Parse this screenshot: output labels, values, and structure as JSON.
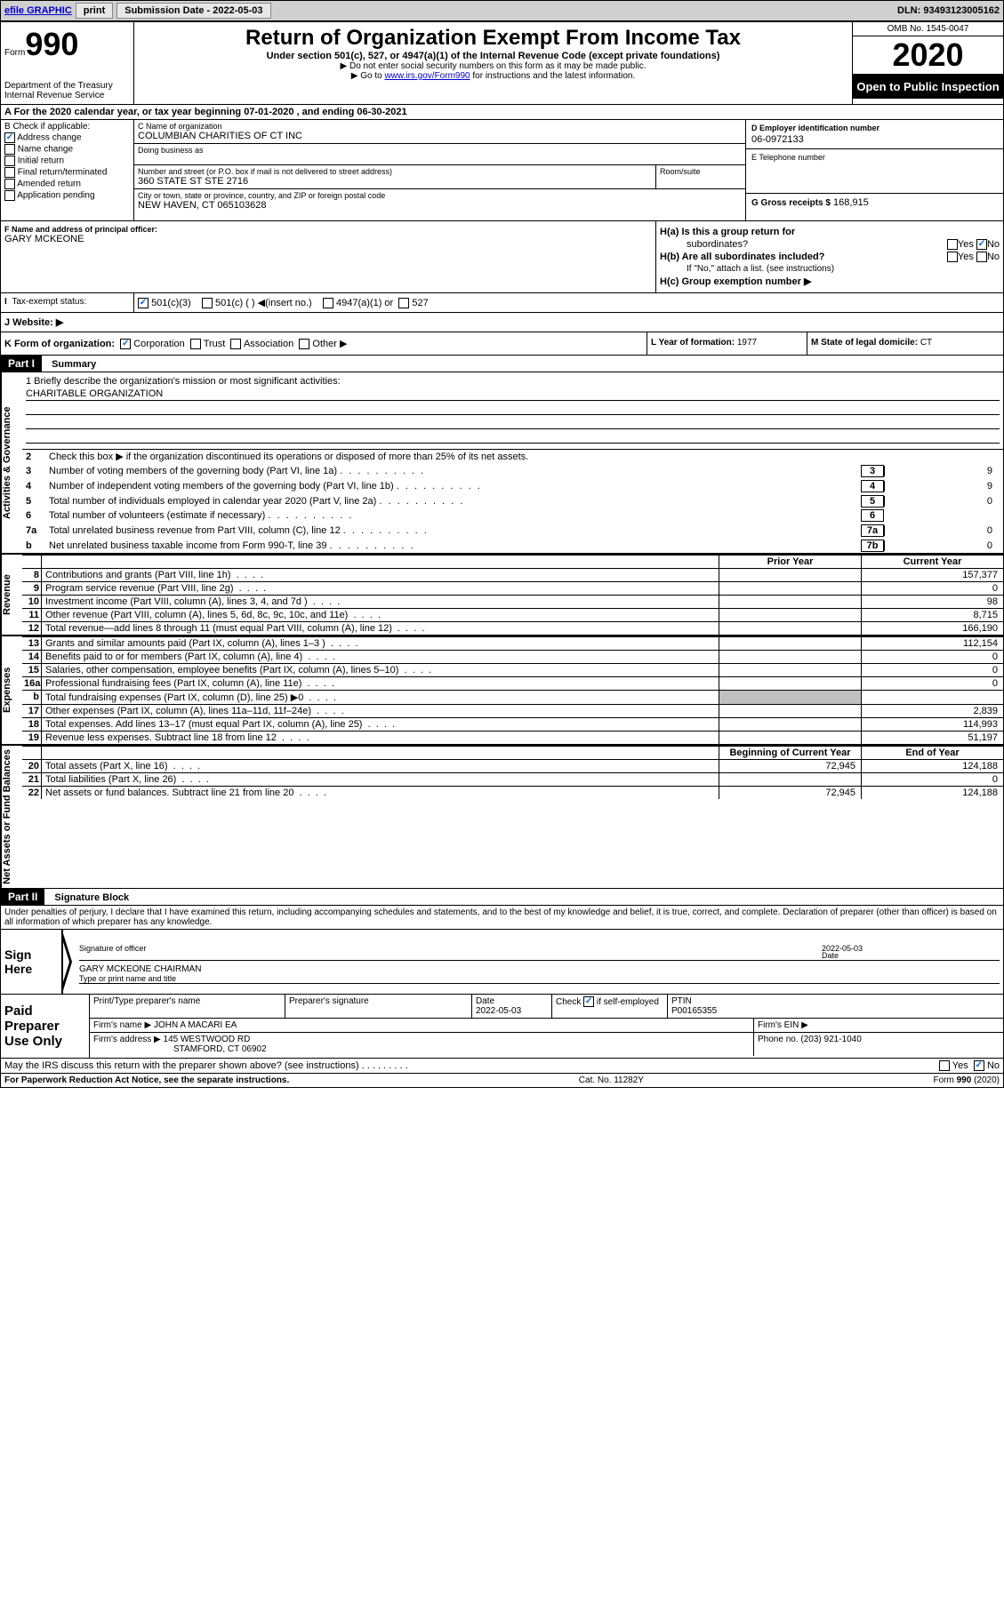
{
  "topbar": {
    "efile_label": "efile GRAPHIC",
    "print_label": "print",
    "submission_label": "Submission Date - 2022-05-03",
    "dln_label": "DLN: 93493123005162"
  },
  "header": {
    "form_label": "Form",
    "form_number": "990",
    "dept": "Department of the Treasury\nInternal Revenue Service",
    "title": "Return of Organization Exempt From Income Tax",
    "subtitle": "Under section 501(c), 527, or 4947(a)(1) of the Internal Revenue Code (except private foundations)",
    "note1": "▶ Do not enter social security numbers on this form as it may be made public.",
    "note2_pre": "▶ Go to ",
    "note2_link": "www.irs.gov/Form990",
    "note2_post": " for instructions and the latest information.",
    "omb": "OMB No. 1545-0047",
    "year": "2020",
    "open": "Open to Public Inspection"
  },
  "period": {
    "text": "A For the 2020 calendar year, or tax year beginning 07-01-2020     , and ending 06-30-2021"
  },
  "section_b": {
    "label": "B Check if applicable:",
    "address_change": "Address change",
    "name_change": "Name change",
    "initial_return": "Initial return",
    "final_return": "Final return/terminated",
    "amended": "Amended return",
    "app_pending": "Application pending"
  },
  "section_c": {
    "name_label": "C Name of organization",
    "name": "COLUMBIAN CHARITIES OF CT INC",
    "dba_label": "Doing business as",
    "dba": "",
    "street_label": "Number and street (or P.O. box if mail is not delivered to street address)",
    "street": "360 STATE ST STE 2716",
    "room_label": "Room/suite",
    "room": "",
    "city_label": "City or town, state or province, country, and ZIP or foreign postal code",
    "city": "NEW HAVEN, CT  065103628"
  },
  "section_d": {
    "ein_label": "D Employer identification number",
    "ein": "06-0972133",
    "phone_label": "E Telephone number",
    "phone": "",
    "gross_label": "G Gross receipts $",
    "gross": "168,915"
  },
  "section_f": {
    "label": "F  Name and address of principal officer:",
    "name": "GARY MCKEONE"
  },
  "section_h": {
    "ha_label": "H(a)  Is this a group return for",
    "ha_label2": "subordinates?",
    "hb_label": "H(b)  Are all subordinates included?",
    "hb_note": "If \"No,\" attach a list. (see instructions)",
    "hc_label": "H(c)  Group exemption number ▶",
    "yes": "Yes",
    "no": "No"
  },
  "section_i": {
    "label": "Tax-exempt status:",
    "opt1": "501(c)(3)",
    "opt2": "501(c) (  ) ◀(insert no.)",
    "opt3": "4947(a)(1) or",
    "opt4": "527"
  },
  "section_j": {
    "label": "J   Website: ▶"
  },
  "section_k": {
    "label": "K Form of organization:",
    "corp": "Corporation",
    "trust": "Trust",
    "assoc": "Association",
    "other": "Other ▶"
  },
  "section_l": {
    "label": "L Year of formation:",
    "value": "1977"
  },
  "section_m": {
    "label": "M State of legal domicile:",
    "value": "CT"
  },
  "part1": {
    "header": "Part I",
    "title": "Summary",
    "line1": "1  Briefly describe the organization's mission or most significant activities:",
    "mission": "CHARITABLE ORGANIZATION",
    "line2": "Check this box ▶         if the organization discontinued its operations or disposed of more than 25% of its net assets.",
    "tabs": {
      "gov": "Activities & Governance",
      "rev": "Revenue",
      "exp": "Expenses",
      "net": "Net Assets or Fund Balances"
    },
    "rows_gov": [
      {
        "n": "2",
        "txt": "",
        "box": "",
        "v": ""
      },
      {
        "n": "3",
        "txt": "Number of voting members of the governing body (Part VI, line 1a)",
        "box": "3",
        "v": "9"
      },
      {
        "n": "4",
        "txt": "Number of independent voting members of the governing body (Part VI, line 1b)",
        "box": "4",
        "v": "9"
      },
      {
        "n": "5",
        "txt": "Total number of individuals employed in calendar year 2020 (Part V, line 2a)",
        "box": "5",
        "v": "0"
      },
      {
        "n": "6",
        "txt": "Total number of volunteers (estimate if necessary)",
        "box": "6",
        "v": ""
      },
      {
        "n": "7a",
        "txt": "Total unrelated business revenue from Part VIII, column (C), line 12",
        "box": "7a",
        "v": "0"
      },
      {
        "n": "b",
        "txt": "Net unrelated business taxable income from Form 990-T, line 39",
        "box": "7b",
        "v": "0"
      }
    ],
    "col_hdr": {
      "prior": "Prior Year",
      "current": "Current Year"
    },
    "rows_rev": [
      {
        "n": "8",
        "txt": "Contributions and grants (Part VIII, line 1h)",
        "p": "",
        "c": "157,377"
      },
      {
        "n": "9",
        "txt": "Program service revenue (Part VIII, line 2g)",
        "p": "",
        "c": "0"
      },
      {
        "n": "10",
        "txt": "Investment income (Part VIII, column (A), lines 3, 4, and 7d )",
        "p": "",
        "c": "98"
      },
      {
        "n": "11",
        "txt": "Other revenue (Part VIII, column (A), lines 5, 6d, 8c, 9c, 10c, and 11e)",
        "p": "",
        "c": "8,715"
      },
      {
        "n": "12",
        "txt": "Total revenue—add lines 8 through 11 (must equal Part VIII, column (A), line 12)",
        "p": "",
        "c": "166,190"
      }
    ],
    "rows_exp": [
      {
        "n": "13",
        "txt": "Grants and similar amounts paid (Part IX, column (A), lines 1–3 )",
        "p": "",
        "c": "112,154"
      },
      {
        "n": "14",
        "txt": "Benefits paid to or for members (Part IX, column (A), line 4)",
        "p": "",
        "c": "0"
      },
      {
        "n": "15",
        "txt": "Salaries, other compensation, employee benefits (Part IX, column (A), lines 5–10)",
        "p": "",
        "c": "0"
      },
      {
        "n": "16a",
        "txt": "Professional fundraising fees (Part IX, column (A), line 11e)",
        "p": "",
        "c": "0"
      },
      {
        "n": "b",
        "txt": "Total fundraising expenses (Part IX, column (D), line 25) ▶0",
        "p": "shaded",
        "c": ""
      },
      {
        "n": "17",
        "txt": "Other expenses (Part IX, column (A), lines 11a–11d, 11f–24e)",
        "p": "",
        "c": "2,839"
      },
      {
        "n": "18",
        "txt": "Total expenses. Add lines 13–17 (must equal Part IX, column (A), line 25)",
        "p": "",
        "c": "114,993"
      },
      {
        "n": "19",
        "txt": "Revenue less expenses. Subtract line 18 from line 12",
        "p": "",
        "c": "51,197"
      }
    ],
    "col_hdr2": {
      "begin": "Beginning of Current Year",
      "end": "End of Year"
    },
    "rows_net": [
      {
        "n": "20",
        "txt": "Total assets (Part X, line 16)",
        "p": "72,945",
        "c": "124,188"
      },
      {
        "n": "21",
        "txt": "Total liabilities (Part X, line 26)",
        "p": "",
        "c": "0"
      },
      {
        "n": "22",
        "txt": "Net assets or fund balances. Subtract line 21 from line 20",
        "p": "72,945",
        "c": "124,188"
      }
    ]
  },
  "part2": {
    "header": "Part II",
    "title": "Signature Block",
    "penalties": "Under penalties of perjury, I declare that I have examined this return, including accompanying schedules and statements, and to the best of my knowledge and belief, it is true, correct, and complete. Declaration of preparer (other than officer) is based on all information of which preparer has any knowledge.",
    "sign_here": "Sign Here",
    "sig_officer": "Signature of officer",
    "date": "Date",
    "sig_date": "2022-05-03",
    "officer_name": "GARY MCKEONE  CHAIRMAN",
    "type_name": "Type or print name and title",
    "paid_prep": "Paid Preparer Use Only",
    "prep_name_label": "Print/Type preparer's name",
    "prep_name": "",
    "prep_sig_label": "Preparer's signature",
    "prep_date_label": "Date",
    "prep_date": "2022-05-03",
    "check_if": "Check          if self-employed",
    "ptin_label": "PTIN",
    "ptin": "P00165355",
    "firm_name_label": "Firm's name      ▶",
    "firm_name": "JOHN A MACARI EA",
    "firm_ein_label": "Firm's EIN ▶",
    "firm_ein": "",
    "firm_addr_label": "Firm's address ▶",
    "firm_addr": "145 WESTWOOD RD",
    "firm_addr2": "STAMFORD, CT  06902",
    "phone_label": "Phone no.",
    "phone": "(203) 921-1040",
    "discuss": "May the IRS discuss this return with the preparer shown above? (see instructions)"
  },
  "footer": {
    "left": "For Paperwork Reduction Act Notice, see the separate instructions.",
    "center": "Cat. No. 11282Y",
    "right": "Form 990 (2020)"
  }
}
